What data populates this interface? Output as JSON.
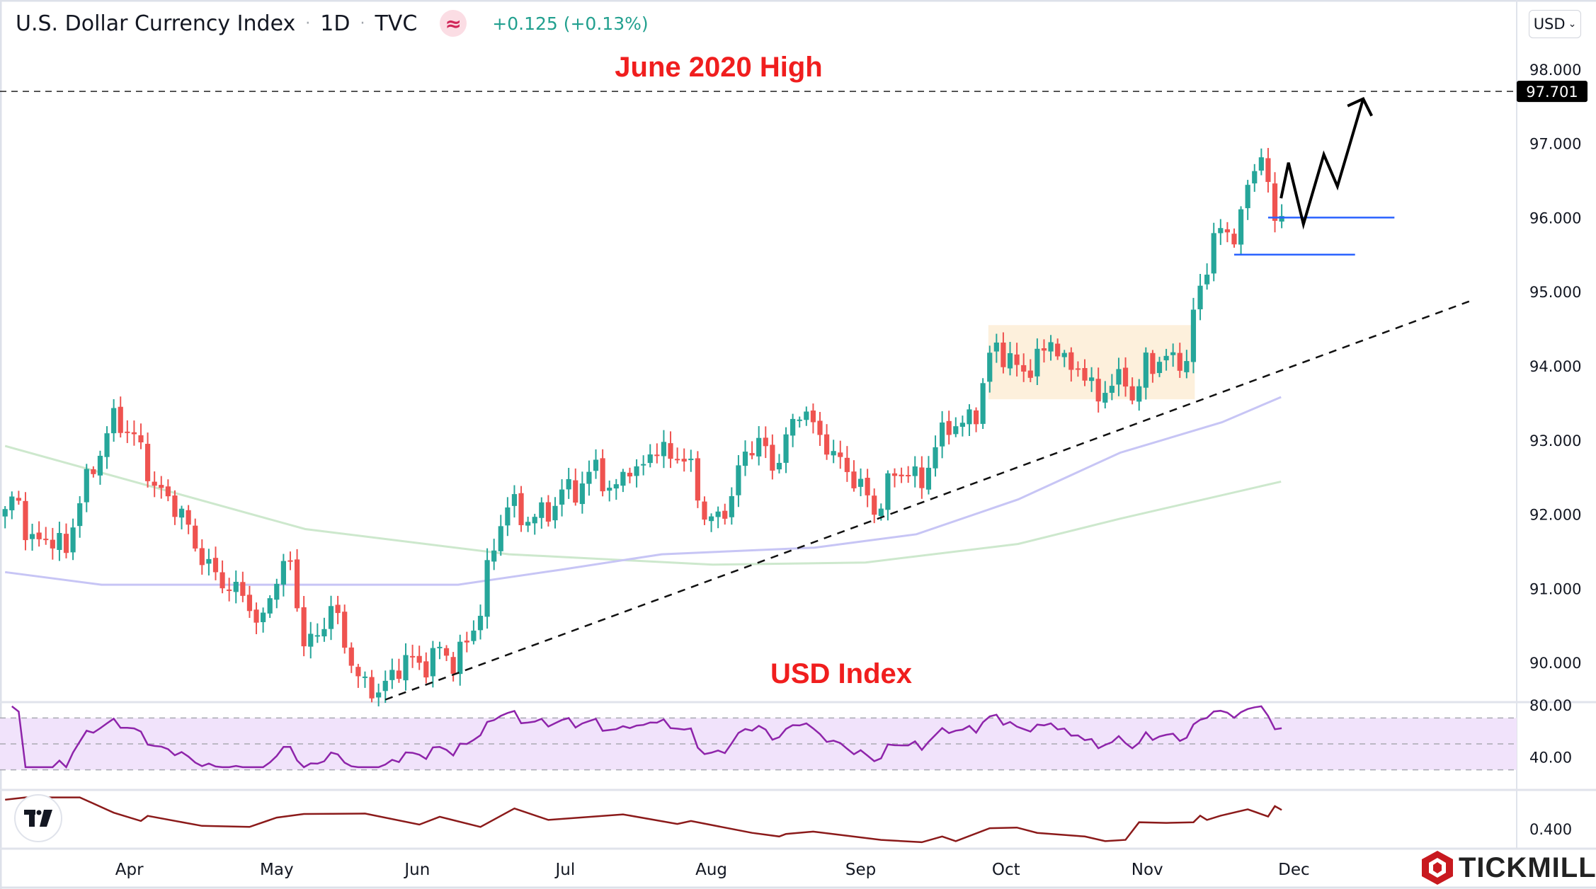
{
  "header": {
    "title": "U.S. Dollar Currency Index",
    "sep": "·",
    "interval": "1D",
    "source": "TVC",
    "live_icon": "≈",
    "change": "+0.125 (+0.13%)"
  },
  "currency_button": "USD",
  "logo": {
    "tradingview": "TV",
    "broker": "TICKMILL"
  },
  "colors": {
    "up": "#26a69a",
    "down": "#ef5350",
    "ma100": "#c7c5f5",
    "ma200": "#cde8cd",
    "rsi": "#8e24aa",
    "osc": "#8b1a1a",
    "annot": "#f01e1e",
    "level": "#2962ff"
  },
  "chart_data": {
    "type": "candlestick",
    "title": "U.S. Dollar Currency Index · 1D · TVC",
    "x_unit": "trading day index",
    "ylim": [
      89.3,
      98.2
    ],
    "y_ticks": [
      "98.000",
      "97.000",
      "96.000",
      "95.000",
      "94.000",
      "93.000",
      "92.000",
      "91.000",
      "90.000"
    ],
    "y_tick_values": [
      98,
      97,
      96,
      95,
      94,
      93,
      92,
      91,
      90
    ],
    "months": [
      {
        "label": "Apr",
        "day": 18.3
      },
      {
        "label": "May",
        "day": 40
      },
      {
        "label": "Jun",
        "day": 60.7
      },
      {
        "label": "Jul",
        "day": 82.5
      },
      {
        "label": "Aug",
        "day": 104
      },
      {
        "label": "Sep",
        "day": 126
      },
      {
        "label": "Oct",
        "day": 147.4
      },
      {
        "label": "Nov",
        "day": 168.2
      },
      {
        "label": "Dec",
        "day": 189.8
      }
    ],
    "close_path": [
      [
        0,
        92.0
      ],
      [
        1.5,
        92.3
      ],
      [
        3.7,
        91.6
      ],
      [
        6.7,
        91.7
      ],
      [
        9,
        91.5
      ],
      [
        11.2,
        92.3
      ],
      [
        13.5,
        92.7
      ],
      [
        15.7,
        93.3
      ],
      [
        17.2,
        93.2
      ],
      [
        19.5,
        93.0
      ],
      [
        21.7,
        92.4
      ],
      [
        24,
        92.2
      ],
      [
        26.2,
        92.0
      ],
      [
        27.7,
        91.6
      ],
      [
        30,
        91.3
      ],
      [
        31.5,
        91.1
      ],
      [
        33.7,
        91.0
      ],
      [
        36,
        90.8
      ],
      [
        37.5,
        90.4
      ],
      [
        39,
        90.9
      ],
      [
        40.5,
        91.3
      ],
      [
        42,
        91.3
      ],
      [
        44.2,
        90.2
      ],
      [
        46.5,
        90.4
      ],
      [
        48,
        90.8
      ],
      [
        50.2,
        90.2
      ],
      [
        52.5,
        89.7
      ],
      [
        54.7,
        89.6
      ],
      [
        57,
        89.8
      ],
      [
        59.2,
        90.1
      ],
      [
        61.5,
        89.9
      ],
      [
        63.7,
        90.2
      ],
      [
        66,
        90.0
      ],
      [
        68.2,
        90.3
      ],
      [
        69.7,
        90.6
      ],
      [
        71.2,
        91.3
      ],
      [
        72.7,
        91.8
      ],
      [
        74.2,
        92.2
      ],
      [
        76.5,
        91.9
      ],
      [
        78.7,
        92.0
      ],
      [
        81,
        92.1
      ],
      [
        82.5,
        92.4
      ],
      [
        84.7,
        92.3
      ],
      [
        87,
        92.7
      ],
      [
        89.2,
        92.2
      ],
      [
        91.5,
        92.7
      ],
      [
        93,
        92.5
      ],
      [
        95.2,
        92.9
      ],
      [
        97.5,
        92.8
      ],
      [
        99,
        92.8
      ],
      [
        101.2,
        92.6
      ],
      [
        102.7,
        92.0
      ],
      [
        104.2,
        91.9
      ],
      [
        105.7,
        92.0
      ],
      [
        107.2,
        92.3
      ],
      [
        108.7,
        92.8
      ],
      [
        111,
        93.0
      ],
      [
        113.2,
        92.6
      ],
      [
        115.4,
        93.1
      ],
      [
        117.7,
        93.5
      ],
      [
        119.2,
        93.1
      ],
      [
        121.4,
        92.9
      ],
      [
        123.7,
        92.6
      ],
      [
        125.9,
        92.4
      ],
      [
        128.2,
        92.0
      ],
      [
        130.4,
        92.5
      ],
      [
        132.7,
        92.6
      ],
      [
        134.9,
        92.4
      ],
      [
        136.9,
        92.9
      ],
      [
        138.7,
        93.2
      ],
      [
        140.9,
        93.2
      ],
      [
        143.2,
        93.4
      ],
      [
        145.4,
        94.3
      ],
      [
        147.7,
        94.1
      ],
      [
        149.9,
        93.9
      ],
      [
        152.2,
        94.1
      ],
      [
        154.4,
        94.4
      ],
      [
        155.9,
        94.0
      ],
      [
        158.2,
        94.0
      ],
      [
        160.4,
        93.6
      ],
      [
        162.7,
        93.7
      ],
      [
        164.9,
        93.9
      ],
      [
        166.4,
        93.4
      ],
      [
        167.9,
        94.1
      ],
      [
        170.2,
        94.0
      ],
      [
        172.4,
        94.2
      ],
      [
        173.9,
        93.9
      ],
      [
        175.4,
        95.0
      ],
      [
        176.9,
        95.3
      ],
      [
        178.4,
        95.8
      ],
      [
        179.9,
        95.9
      ],
      [
        181.4,
        95.6
      ],
      [
        182.5,
        96.3
      ],
      [
        183.7,
        96.7
      ],
      [
        185.2,
        96.8
      ],
      [
        186.7,
        96.0
      ],
      [
        188,
        96.1
      ]
    ],
    "num_days": 189,
    "ma100": [
      [
        0,
        91.22
      ],
      [
        14.2,
        91.05
      ],
      [
        44.2,
        91.05
      ],
      [
        66.7,
        91.05
      ],
      [
        81.7,
        91.25
      ],
      [
        96.7,
        91.46
      ],
      [
        119.2,
        91.55
      ],
      [
        134.2,
        91.73
      ],
      [
        149.2,
        92.2
      ],
      [
        164.2,
        92.83
      ],
      [
        179.2,
        93.24
      ],
      [
        187.9,
        93.58
      ]
    ],
    "ma200": [
      [
        0,
        92.92
      ],
      [
        44.2,
        91.8
      ],
      [
        74.2,
        91.46
      ],
      [
        104.2,
        91.32
      ],
      [
        126.7,
        91.35
      ],
      [
        149.2,
        91.6
      ],
      [
        164.2,
        91.94
      ],
      [
        187.9,
        92.44
      ]
    ],
    "resistance": {
      "label": "97.701",
      "value": 97.701
    },
    "trendline": [
      [
        56,
        89.5
      ],
      [
        215.6,
        94.87
      ]
    ],
    "consolidation_box": {
      "day_from": 144.8,
      "day_to": 175.2,
      "low": 93.55,
      "high": 94.55
    },
    "support_levels": [
      {
        "value": 96.0,
        "day_from": 186,
        "day_to": 204.6
      },
      {
        "value": 95.5,
        "day_from": 181,
        "day_to": 198.8
      }
    ],
    "projection_path": [
      [
        187.9,
        96.26
      ],
      [
        189,
        96.74
      ],
      [
        191.2,
        95.91
      ],
      [
        194.2,
        96.85
      ],
      [
        196.2,
        96.42
      ],
      [
        200,
        97.6
      ]
    ],
    "annotations": {
      "top": "June 2020 High",
      "bottom": "USD Index"
    },
    "rsi": {
      "ticks": [
        "80.00",
        "40.00"
      ],
      "tick_values": [
        80,
        40
      ],
      "band": [
        30,
        70
      ],
      "mid": 50,
      "period": 14
    },
    "oscillator": {
      "ticks": [
        "0.400"
      ],
      "tick_values": [
        0.4
      ],
      "points": [
        [
          0,
          0.537
        ],
        [
          3,
          0.548
        ],
        [
          11,
          0.548
        ],
        [
          16,
          0.476
        ],
        [
          20,
          0.437
        ],
        [
          21,
          0.461
        ],
        [
          29,
          0.414
        ],
        [
          36,
          0.409
        ],
        [
          40,
          0.453
        ],
        [
          44,
          0.47
        ],
        [
          53,
          0.472
        ],
        [
          61,
          0.42
        ],
        [
          64,
          0.457
        ],
        [
          70,
          0.409
        ],
        [
          75,
          0.496
        ],
        [
          80,
          0.442
        ],
        [
          91,
          0.468
        ],
        [
          99,
          0.423
        ],
        [
          101,
          0.437
        ],
        [
          110,
          0.381
        ],
        [
          114,
          0.364
        ],
        [
          115,
          0.376
        ],
        [
          119,
          0.387
        ],
        [
          129,
          0.348
        ],
        [
          135,
          0.337
        ],
        [
          138,
          0.364
        ],
        [
          140,
          0.342
        ],
        [
          145,
          0.403
        ],
        [
          149,
          0.406
        ],
        [
          152,
          0.381
        ],
        [
          159,
          0.364
        ],
        [
          162,
          0.342
        ],
        [
          165,
          0.348
        ],
        [
          167,
          0.431
        ],
        [
          171,
          0.428
        ],
        [
          175,
          0.431
        ],
        [
          176,
          0.462
        ],
        [
          177,
          0.442
        ],
        [
          179,
          0.462
        ],
        [
          183,
          0.492
        ],
        [
          186,
          0.458
        ],
        [
          187,
          0.507
        ],
        [
          188,
          0.489
        ]
      ]
    }
  }
}
